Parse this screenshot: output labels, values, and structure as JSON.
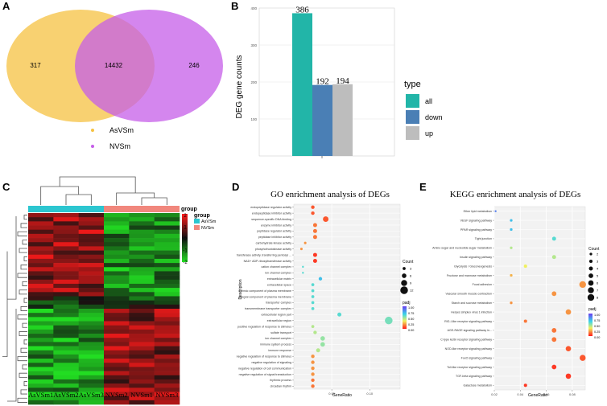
{
  "panels": {
    "A": "A",
    "B": "B",
    "C": "C",
    "D": "D",
    "E": "E"
  },
  "colors": {
    "venn_left": "#f5c242",
    "venn_right": "#c55ee8",
    "overlap": "#d9848f",
    "bar_all": "#22b5a8",
    "bar_down": "#4a7fb5",
    "bar_up": "#bdbdbd",
    "heat_high": "#ff1a1a",
    "heat_low": "#22dd22",
    "heat_mid": "#111111",
    "group_as": "#2cc6d0",
    "group_nv": "#f1877d"
  },
  "venn": {
    "left_only": "317",
    "overlap": "14432",
    "right_only": "246",
    "legend": [
      {
        "label": "AsVSm",
        "color": "#f5c242"
      },
      {
        "label": "NVSm",
        "color": "#c55ee8"
      }
    ]
  },
  "heatmap": {
    "columns": [
      "AsVSm1",
      "AsVSm2",
      "AsVSm3",
      "NVSm2",
      "NVSm1",
      "NVSm3"
    ],
    "group_title": "group",
    "legend_title": "group",
    "groups": [
      {
        "label": "AsVSm",
        "color": "#2cc6d0"
      },
      {
        "label": "NVSm",
        "color": "#f1877d"
      }
    ],
    "scale_labels": [
      "2",
      "1",
      "0",
      "-1",
      "-2"
    ]
  },
  "chart_data": [
    {
      "panel": "B",
      "type": "bar",
      "categories": [
        "all",
        "down",
        "up"
      ],
      "values": [
        386,
        192,
        194
      ],
      "value_labels": [
        "386",
        "192",
        "194"
      ],
      "ylabel": "DEG gene counts",
      "ylim": [
        0,
        400
      ],
      "yticks": [
        "400",
        "300",
        "200",
        "100"
      ],
      "legend_title": "type",
      "legend_position": "right",
      "grid": true
    },
    {
      "panel": "D",
      "type": "scatter",
      "title": "GO enrichment analysis of DEGs",
      "xlabel": "GeneRatio",
      "ylabel": "Description",
      "xlim": [
        0.0,
        0.14
      ],
      "xticks": [
        {
          "v": 0.05,
          "label": "0.05"
        },
        {
          "v": 0.1,
          "label": "0.10"
        }
      ],
      "count_legend": {
        "title": "Count",
        "values": [
          "3",
          "6",
          "9",
          "12"
        ]
      },
      "color_legend": {
        "title": "padj",
        "values": [
          "1.00",
          "0.75",
          "0.50",
          "0.25",
          "0.00"
        ]
      },
      "points": [
        {
          "term": "endopeptidase regulator activity",
          "x": 0.025,
          "count": 4,
          "padj": 0.1
        },
        {
          "term": "endopeptidase inhibitor activity",
          "x": 0.025,
          "count": 4,
          "padj": 0.1
        },
        {
          "term": "sequence-specific DNA binding",
          "x": 0.042,
          "count": 8,
          "padj": 0.1
        },
        {
          "term": "enzyme inhibitor activity",
          "x": 0.028,
          "count": 5,
          "padj": 0.15
        },
        {
          "term": "peptidase regulator activity",
          "x": 0.028,
          "count": 5,
          "padj": 0.15
        },
        {
          "term": "peptidase inhibitor activity",
          "x": 0.028,
          "count": 5,
          "padj": 0.15
        },
        {
          "term": "carbohydrate kinase activity",
          "x": 0.015,
          "count": 2,
          "padj": 0.2
        },
        {
          "term": "phosphofructokinase activity",
          "x": 0.01,
          "count": 2,
          "padj": 0.2
        },
        {
          "term": "transferase activity, transferring pentosyl ...",
          "x": 0.028,
          "count": 5,
          "padj": 0.05
        },
        {
          "term": "NAD+ ADP-ribosyltransferase activity",
          "x": 0.028,
          "count": 5,
          "padj": 0.05
        },
        {
          "term": "cation channel complex",
          "x": 0.012,
          "count": 1,
          "padj": 0.6
        },
        {
          "term": "ion channel complex",
          "x": 0.012,
          "count": 1,
          "padj": 0.6
        },
        {
          "term": "extracellular matrix",
          "x": 0.035,
          "count": 4,
          "padj": 0.7
        },
        {
          "term": "extracellular space",
          "x": 0.025,
          "count": 3,
          "padj": 0.6
        },
        {
          "term": "intrinsic component of plasma membrane",
          "x": 0.025,
          "count": 3,
          "padj": 0.6
        },
        {
          "term": "integral component of plasma membrane",
          "x": 0.025,
          "count": 3,
          "padj": 0.6
        },
        {
          "term": "transporter complex",
          "x": 0.025,
          "count": 3,
          "padj": 0.6
        },
        {
          "term": "transmembrane transporter complex",
          "x": 0.025,
          "count": 3,
          "padj": 0.6
        },
        {
          "term": "extracellular region part",
          "x": 0.06,
          "count": 5,
          "padj": 0.6
        },
        {
          "term": "extracellular region",
          "x": 0.125,
          "count": 12,
          "padj": 0.55
        },
        {
          "term": "positive regulation of response to stimulus",
          "x": 0.025,
          "count": 3,
          "padj": 0.45
        },
        {
          "term": "sulfate transport",
          "x": 0.028,
          "count": 4,
          "padj": 0.45
        },
        {
          "term": "ion channel complex",
          "x": 0.038,
          "count": 6,
          "padj": 0.5
        },
        {
          "term": "immune system process",
          "x": 0.038,
          "count": 6,
          "padj": 0.5
        },
        {
          "term": "immune response",
          "x": 0.032,
          "count": 5,
          "padj": 0.45
        },
        {
          "term": "negative regulation of response to stimulus",
          "x": 0.025,
          "count": 4,
          "padj": 0.2
        },
        {
          "term": "negative regulation of signaling",
          "x": 0.025,
          "count": 4,
          "padj": 0.2
        },
        {
          "term": "negative regulation of cell communication",
          "x": 0.025,
          "count": 4,
          "padj": 0.2
        },
        {
          "term": "negative regulation of signal transduction",
          "x": 0.025,
          "count": 4,
          "padj": 0.2
        },
        {
          "term": "rhythmic process",
          "x": 0.025,
          "count": 4,
          "padj": 0.15
        },
        {
          "term": "circadian rhythm",
          "x": 0.025,
          "count": 4,
          "padj": 0.15
        }
      ]
    },
    {
      "panel": "E",
      "type": "scatter",
      "title": "KEGG enrichment analysis of DEGs",
      "xlabel": "GeneRatio",
      "ylabel": "",
      "xlim": [
        0.02,
        0.09
      ],
      "xticks": [
        {
          "v": 0.02,
          "label": "0.02"
        },
        {
          "v": 0.04,
          "label": "0.04"
        },
        {
          "v": 0.06,
          "label": "0.06"
        },
        {
          "v": 0.08,
          "label": "0.08"
        }
      ],
      "count_legend": {
        "title": "Count",
        "values": [
          "2",
          "3",
          "4",
          "5",
          "6",
          "7",
          "8"
        ]
      },
      "color_legend": {
        "title": "padj",
        "values": [
          "1.00",
          "0.75",
          "0.50",
          "0.25",
          "0.00"
        ]
      },
      "points": [
        {
          "term": "Ether lipid metabolism",
          "x": 0.021,
          "count": 1,
          "padj": 0.85
        },
        {
          "term": "VEGF signaling pathway",
          "x": 0.033,
          "count": 2,
          "padj": 0.7
        },
        {
          "term": "PPAR signaling pathway",
          "x": 0.033,
          "count": 2,
          "padj": 0.7
        },
        {
          "term": "Tight junction",
          "x": 0.066,
          "count": 4,
          "padj": 0.6
        },
        {
          "term": "Amino sugar and nucleotide sugar metabolism",
          "x": 0.033,
          "count": 2,
          "padj": 0.45
        },
        {
          "term": "Insulin signaling pathway",
          "x": 0.066,
          "count": 4,
          "padj": 0.45
        },
        {
          "term": "Glycolysis / Gluconeogenesis",
          "x": 0.044,
          "count": 3,
          "padj": 0.35
        },
        {
          "term": "Fructose and mannose metabolism",
          "x": 0.033,
          "count": 2,
          "padj": 0.25
        },
        {
          "term": "Focal adhesion",
          "x": 0.088,
          "count": 8,
          "padj": 0.2
        },
        {
          "term": "Vascular smooth muscle contraction",
          "x": 0.066,
          "count": 5,
          "padj": 0.2
        },
        {
          "term": "Starch and sucrose metabolism",
          "x": 0.033,
          "count": 2,
          "padj": 0.2
        },
        {
          "term": "Herpes simplex virus 1 infection",
          "x": 0.077,
          "count": 6,
          "padj": 0.2
        },
        {
          "term": "RIG-I-like receptor signaling pathway",
          "x": 0.044,
          "count": 3,
          "padj": 0.15
        },
        {
          "term": "AGE-RAGE signaling pathway in...",
          "x": 0.066,
          "count": 5,
          "padj": 0.15
        },
        {
          "term": "C-type lectin receptor signaling pathway",
          "x": 0.066,
          "count": 5,
          "padj": 0.15
        },
        {
          "term": "NOD-like receptor signaling pathway",
          "x": 0.077,
          "count": 6,
          "padj": 0.1
        },
        {
          "term": "FoxO signaling pathway",
          "x": 0.088,
          "count": 7,
          "padj": 0.1
        },
        {
          "term": "Toll-like receptor signaling pathway",
          "x": 0.066,
          "count": 5,
          "padj": 0.05
        },
        {
          "term": "TGF-beta signaling pathway",
          "x": 0.077,
          "count": 6,
          "padj": 0.05
        },
        {
          "term": "Galactose metabolism",
          "x": 0.044,
          "count": 3,
          "padj": 0.05
        }
      ]
    }
  ]
}
